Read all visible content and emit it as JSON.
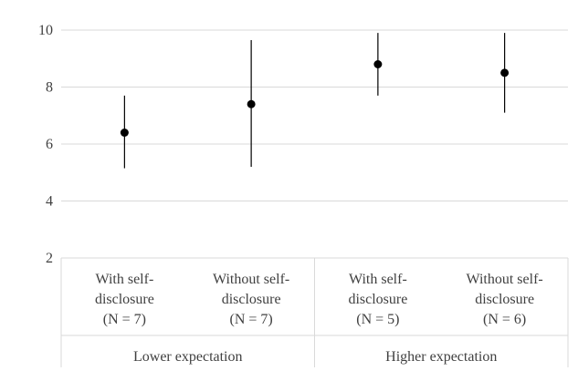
{
  "chart_data": {
    "type": "scatter",
    "title": "",
    "xlabel": "",
    "ylabel": "",
    "ylim": [
      2,
      10
    ],
    "yticks": [
      2,
      4,
      6,
      8,
      10
    ],
    "grid": true,
    "legend": "none",
    "categories": [
      {
        "lines": [
          "With self-",
          "disclosure",
          "(N = 7)"
        ],
        "group": "Lower expectation"
      },
      {
        "lines": [
          "Without self-",
          "disclosure",
          "(N = 7)"
        ],
        "group": "Lower expectation"
      },
      {
        "lines": [
          "With self-",
          "disclosure",
          "(N = 5)"
        ],
        "group": "Higher expectation"
      },
      {
        "lines": [
          "Without self-",
          "disclosure",
          "(N = 6)"
        ],
        "group": "Higher expectation"
      }
    ],
    "groups": [
      "Lower expectation",
      "Higher expectation"
    ],
    "series": [
      {
        "values": [
          6.4,
          7.4,
          8.8,
          8.5
        ],
        "err_low": [
          5.15,
          5.2,
          7.7,
          7.1
        ],
        "err_high": [
          7.7,
          9.65,
          9.9,
          9.9
        ]
      }
    ],
    "colors": {
      "marker": "#000000",
      "grid": "#d9d9d9",
      "text": "#404040"
    }
  }
}
